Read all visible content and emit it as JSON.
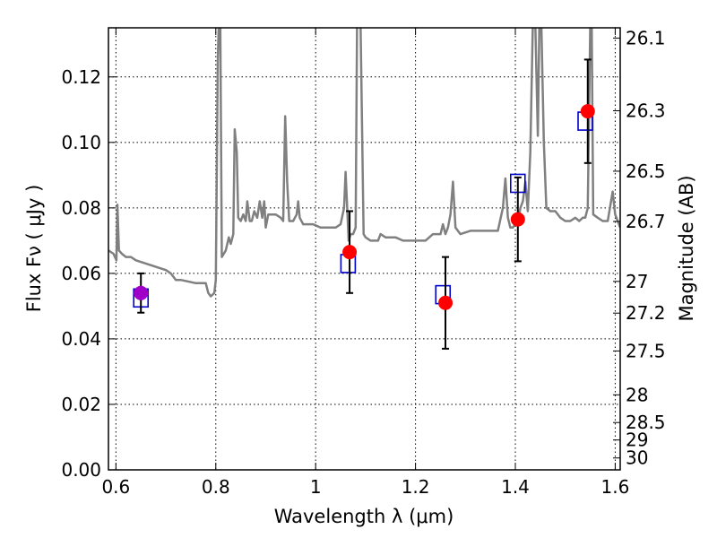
{
  "chart_data": {
    "type": "scatter",
    "xlabel": "Wavelength  λ (μm)",
    "ylabel": "Flux  Fν  ( μJy )",
    "y2label": "Magnitude (AB)",
    "xlim": [
      0.585,
      1.61
    ],
    "ylim": [
      0.0,
      0.135
    ],
    "grid": true,
    "x_ticks": [
      {
        "value": 0.6,
        "label": "0.6"
      },
      {
        "value": 0.8,
        "label": "0.8"
      },
      {
        "value": 1.0,
        "label": "1"
      },
      {
        "value": 1.2,
        "label": "1.2"
      },
      {
        "value": 1.4,
        "label": "1.4"
      },
      {
        "value": 1.6,
        "label": "1.6"
      }
    ],
    "y_ticks": [
      {
        "value": 0.0,
        "label": "0.00"
      },
      {
        "value": 0.02,
        "label": "0.02"
      },
      {
        "value": 0.04,
        "label": "0.04"
      },
      {
        "value": 0.06,
        "label": "0.06"
      },
      {
        "value": 0.08,
        "label": "0.08"
      },
      {
        "value": 0.1,
        "label": "0.10"
      },
      {
        "value": 0.12,
        "label": "0.12"
      }
    ],
    "mag_ticks": [
      {
        "mag": 26.1,
        "label": "26.1"
      },
      {
        "mag": 26.3,
        "label": "26.3"
      },
      {
        "mag": 26.5,
        "label": "26.5"
      },
      {
        "mag": 26.7,
        "label": "26.7"
      },
      {
        "mag": 27.0,
        "label": "27"
      },
      {
        "mag": 27.2,
        "label": "27.2"
      },
      {
        "mag": 27.5,
        "label": "27.5"
      },
      {
        "mag": 28.0,
        "label": "28"
      },
      {
        "mag": 28.5,
        "label": "28.5"
      },
      {
        "mag": 29.0,
        "label": "29"
      },
      {
        "mag": 30.0,
        "label": "30"
      }
    ],
    "model_spectrum": {
      "color": "#808080",
      "points": [
        [
          0.585,
          0.067
        ],
        [
          0.595,
          0.066
        ],
        [
          0.601,
          0.064
        ],
        [
          0.603,
          0.081
        ],
        [
          0.606,
          0.067
        ],
        [
          0.612,
          0.066
        ],
        [
          0.62,
          0.065
        ],
        [
          0.63,
          0.065
        ],
        [
          0.64,
          0.064
        ],
        [
          0.66,
          0.063
        ],
        [
          0.68,
          0.062
        ],
        [
          0.7,
          0.061
        ],
        [
          0.71,
          0.06
        ],
        [
          0.72,
          0.058
        ],
        [
          0.73,
          0.058
        ],
        [
          0.76,
          0.057
        ],
        [
          0.78,
          0.057
        ],
        [
          0.785,
          0.054
        ],
        [
          0.79,
          0.053
        ],
        [
          0.797,
          0.054
        ],
        [
          0.8,
          0.058
        ],
        [
          0.804,
          0.125
        ],
        [
          0.806,
          0.136
        ],
        [
          0.809,
          0.136
        ],
        [
          0.812,
          0.065
        ],
        [
          0.82,
          0.067
        ],
        [
          0.826,
          0.071
        ],
        [
          0.83,
          0.069
        ],
        [
          0.835,
          0.072
        ],
        [
          0.838,
          0.104
        ],
        [
          0.842,
          0.097
        ],
        [
          0.845,
          0.077
        ],
        [
          0.85,
          0.076
        ],
        [
          0.855,
          0.078
        ],
        [
          0.86,
          0.076
        ],
        [
          0.863,
          0.082
        ],
        [
          0.868,
          0.076
        ],
        [
          0.872,
          0.076
        ],
        [
          0.877,
          0.079
        ],
        [
          0.883,
          0.077
        ],
        [
          0.888,
          0.082
        ],
        [
          0.893,
          0.077
        ],
        [
          0.897,
          0.082
        ],
        [
          0.9,
          0.074
        ],
        [
          0.905,
          0.078
        ],
        [
          0.91,
          0.078
        ],
        [
          0.92,
          0.078
        ],
        [
          0.93,
          0.077
        ],
        [
          0.935,
          0.076
        ],
        [
          0.939,
          0.108
        ],
        [
          0.943,
          0.088
        ],
        [
          0.947,
          0.076
        ],
        [
          0.955,
          0.076
        ],
        [
          0.962,
          0.078
        ],
        [
          0.965,
          0.082
        ],
        [
          0.968,
          0.077
        ],
        [
          0.975,
          0.075
        ],
        [
          0.985,
          0.075
        ],
        [
          0.995,
          0.075
        ],
        [
          1.01,
          0.074
        ],
        [
          1.025,
          0.074
        ],
        [
          1.04,
          0.074
        ],
        [
          1.05,
          0.075
        ],
        [
          1.057,
          0.08
        ],
        [
          1.06,
          0.091
        ],
        [
          1.066,
          0.07
        ],
        [
          1.07,
          0.072
        ],
        [
          1.075,
          0.072
        ],
        [
          1.08,
          0.074
        ],
        [
          1.083,
          0.136
        ],
        [
          1.09,
          0.136
        ],
        [
          1.096,
          0.072
        ],
        [
          1.1,
          0.071
        ],
        [
          1.11,
          0.07
        ],
        [
          1.125,
          0.07
        ],
        [
          1.13,
          0.072
        ],
        [
          1.14,
          0.071
        ],
        [
          1.15,
          0.071
        ],
        [
          1.16,
          0.071
        ],
        [
          1.175,
          0.07
        ],
        [
          1.19,
          0.07
        ],
        [
          1.21,
          0.07
        ],
        [
          1.22,
          0.07
        ],
        [
          1.235,
          0.072
        ],
        [
          1.25,
          0.072
        ],
        [
          1.255,
          0.075
        ],
        [
          1.26,
          0.072
        ],
        [
          1.265,
          0.074
        ],
        [
          1.27,
          0.078
        ],
        [
          1.275,
          0.088
        ],
        [
          1.28,
          0.074
        ],
        [
          1.29,
          0.072
        ],
        [
          1.31,
          0.073
        ],
        [
          1.33,
          0.073
        ],
        [
          1.35,
          0.073
        ],
        [
          1.365,
          0.073
        ],
        [
          1.375,
          0.08
        ],
        [
          1.38,
          0.089
        ],
        [
          1.385,
          0.077
        ],
        [
          1.39,
          0.074
        ],
        [
          1.395,
          0.074
        ],
        [
          1.4,
          0.075
        ],
        [
          1.405,
          0.075
        ],
        [
          1.41,
          0.08
        ],
        [
          1.415,
          0.082
        ],
        [
          1.42,
          0.088
        ],
        [
          1.425,
          0.079
        ],
        [
          1.43,
          0.097
        ],
        [
          1.435,
          0.136
        ],
        [
          1.44,
          0.136
        ],
        [
          1.445,
          0.102
        ],
        [
          1.448,
          0.136
        ],
        [
          1.452,
          0.136
        ],
        [
          1.457,
          0.1
        ],
        [
          1.462,
          0.08
        ],
        [
          1.47,
          0.079
        ],
        [
          1.48,
          0.079
        ],
        [
          1.49,
          0.077
        ],
        [
          1.5,
          0.076
        ],
        [
          1.51,
          0.076
        ],
        [
          1.52,
          0.077
        ],
        [
          1.528,
          0.076
        ],
        [
          1.535,
          0.077
        ],
        [
          1.54,
          0.077
        ],
        [
          1.545,
          0.08
        ],
        [
          1.55,
          0.136
        ],
        [
          1.553,
          0.136
        ],
        [
          1.556,
          0.078
        ],
        [
          1.565,
          0.077
        ],
        [
          1.575,
          0.076
        ],
        [
          1.585,
          0.076
        ],
        [
          1.595,
          0.085
        ],
        [
          1.6,
          0.078
        ],
        [
          1.61,
          0.074
        ]
      ]
    },
    "model_points": {
      "color": "#0000cc",
      "marker": "open-square",
      "points": [
        [
          0.65,
          0.0525
        ],
        [
          1.065,
          0.063
        ],
        [
          1.255,
          0.0535
        ],
        [
          1.405,
          0.0875
        ],
        [
          1.54,
          0.1065
        ]
      ]
    },
    "observed_points": {
      "color": "#ff0000",
      "marker": "filled-circle",
      "points": [
        {
          "x": 0.65,
          "y": 0.054,
          "err": 0.006,
          "color": "#a000c8"
        },
        {
          "x": 1.068,
          "y": 0.0665,
          "err": 0.0125,
          "color": "#ff0000"
        },
        {
          "x": 1.26,
          "y": 0.051,
          "err": 0.014,
          "color": "#ff0000"
        },
        {
          "x": 1.405,
          "y": 0.0765,
          "err": 0.0128,
          "color": "#ff0000"
        },
        {
          "x": 1.545,
          "y": 0.1095,
          "err": 0.0158,
          "color": "#ff0000"
        }
      ]
    }
  }
}
